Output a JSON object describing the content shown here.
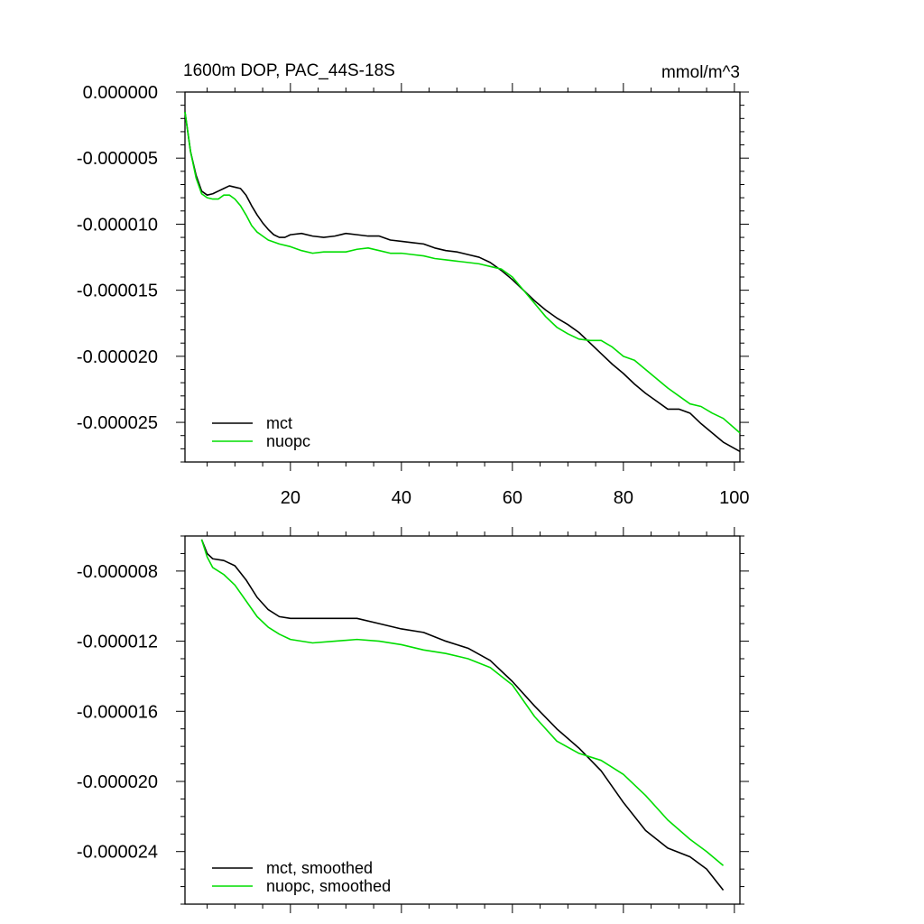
{
  "colors": {
    "mct": "#000000",
    "nuopc": "#00dd00"
  },
  "chart_data": [
    {
      "type": "line",
      "title": "1600m DOP, PAC_44S-18S",
      "units": "mmol/m^3",
      "xlim": [
        1,
        101
      ],
      "ylim": [
        -2.8e-05,
        0.0
      ],
      "x_major_ticks": [
        20,
        40,
        60,
        80,
        100
      ],
      "x_tick_labels": [
        "20",
        "40",
        "60",
        "80",
        "100"
      ],
      "y_major_ticks": [
        0.0,
        -5e-06,
        -1e-05,
        -1.5e-05,
        -2e-05,
        -2.5e-05
      ],
      "y_tick_labels": [
        "0.000000",
        "-0.000005",
        "-0.000010",
        "-0.000015",
        "-0.000020",
        "-0.000025"
      ],
      "legend_position": "bottom-left",
      "series": [
        {
          "name": "mct",
          "color": "#000000",
          "points": [
            [
              1,
              -1.5e-06
            ],
            [
              2,
              -4.5e-06
            ],
            [
              3,
              -6.3e-06
            ],
            [
              4,
              -7.5e-06
            ],
            [
              5,
              -7.8e-06
            ],
            [
              6,
              -7.7e-06
            ],
            [
              7,
              -7.5e-06
            ],
            [
              8,
              -7.3e-06
            ],
            [
              9,
              -7.1e-06
            ],
            [
              10,
              -7.2e-06
            ],
            [
              11,
              -7.3e-06
            ],
            [
              12,
              -7.8e-06
            ],
            [
              13,
              -8.6e-06
            ],
            [
              14,
              -9.3e-06
            ],
            [
              15,
              -9.9e-06
            ],
            [
              16,
              -1.04e-05
            ],
            [
              17,
              -1.08e-05
            ],
            [
              18,
              -1.1e-05
            ],
            [
              19,
              -1.1e-05
            ],
            [
              20,
              -1.08e-05
            ],
            [
              22,
              -1.07e-05
            ],
            [
              24,
              -1.09e-05
            ],
            [
              26,
              -1.1e-05
            ],
            [
              28,
              -1.09e-05
            ],
            [
              30,
              -1.07e-05
            ],
            [
              32,
              -1.08e-05
            ],
            [
              34,
              -1.09e-05
            ],
            [
              36,
              -1.09e-05
            ],
            [
              38,
              -1.12e-05
            ],
            [
              40,
              -1.13e-05
            ],
            [
              42,
              -1.14e-05
            ],
            [
              44,
              -1.15e-05
            ],
            [
              46,
              -1.18e-05
            ],
            [
              48,
              -1.2e-05
            ],
            [
              50,
              -1.21e-05
            ],
            [
              52,
              -1.23e-05
            ],
            [
              54,
              -1.25e-05
            ],
            [
              56,
              -1.29e-05
            ],
            [
              58,
              -1.35e-05
            ],
            [
              60,
              -1.42e-05
            ],
            [
              62,
              -1.5e-05
            ],
            [
              64,
              -1.58e-05
            ],
            [
              66,
              -1.65e-05
            ],
            [
              68,
              -1.71e-05
            ],
            [
              70,
              -1.76e-05
            ],
            [
              72,
              -1.82e-05
            ],
            [
              74,
              -1.9e-05
            ],
            [
              76,
              -1.98e-05
            ],
            [
              78,
              -2.06e-05
            ],
            [
              80,
              -2.13e-05
            ],
            [
              82,
              -2.21e-05
            ],
            [
              84,
              -2.28e-05
            ],
            [
              86,
              -2.34e-05
            ],
            [
              88,
              -2.4e-05
            ],
            [
              90,
              -2.4e-05
            ],
            [
              92,
              -2.43e-05
            ],
            [
              94,
              -2.51e-05
            ],
            [
              96,
              -2.58e-05
            ],
            [
              98,
              -2.65e-05
            ],
            [
              101,
              -2.72e-05
            ]
          ]
        },
        {
          "name": "nuopc",
          "color": "#00dd00",
          "points": [
            [
              1,
              -1.5e-06
            ],
            [
              2,
              -4.5e-06
            ],
            [
              3,
              -6.5e-06
            ],
            [
              4,
              -7.7e-06
            ],
            [
              5,
              -8e-06
            ],
            [
              6,
              -8.1e-06
            ],
            [
              7,
              -8.1e-06
            ],
            [
              8,
              -7.8e-06
            ],
            [
              9,
              -7.8e-06
            ],
            [
              10,
              -8.1e-06
            ],
            [
              11,
              -8.6e-06
            ],
            [
              12,
              -9.3e-06
            ],
            [
              13,
              -1.01e-05
            ],
            [
              14,
              -1.06e-05
            ],
            [
              15,
              -1.09e-05
            ],
            [
              16,
              -1.12e-05
            ],
            [
              18,
              -1.15e-05
            ],
            [
              20,
              -1.17e-05
            ],
            [
              22,
              -1.2e-05
            ],
            [
              24,
              -1.22e-05
            ],
            [
              26,
              -1.21e-05
            ],
            [
              28,
              -1.21e-05
            ],
            [
              30,
              -1.21e-05
            ],
            [
              32,
              -1.19e-05
            ],
            [
              34,
              -1.18e-05
            ],
            [
              36,
              -1.2e-05
            ],
            [
              38,
              -1.22e-05
            ],
            [
              40,
              -1.22e-05
            ],
            [
              42,
              -1.23e-05
            ],
            [
              44,
              -1.24e-05
            ],
            [
              46,
              -1.26e-05
            ],
            [
              48,
              -1.27e-05
            ],
            [
              50,
              -1.28e-05
            ],
            [
              52,
              -1.29e-05
            ],
            [
              54,
              -1.3e-05
            ],
            [
              56,
              -1.32e-05
            ],
            [
              58,
              -1.34e-05
            ],
            [
              60,
              -1.4e-05
            ],
            [
              62,
              -1.5e-05
            ],
            [
              64,
              -1.6e-05
            ],
            [
              66,
              -1.7e-05
            ],
            [
              68,
              -1.78e-05
            ],
            [
              70,
              -1.83e-05
            ],
            [
              72,
              -1.87e-05
            ],
            [
              74,
              -1.88e-05
            ],
            [
              76,
              -1.88e-05
            ],
            [
              78,
              -1.93e-05
            ],
            [
              80,
              -2e-05
            ],
            [
              82,
              -2.03e-05
            ],
            [
              84,
              -2.1e-05
            ],
            [
              86,
              -2.17e-05
            ],
            [
              88,
              -2.24e-05
            ],
            [
              90,
              -2.3e-05
            ],
            [
              92,
              -2.36e-05
            ],
            [
              94,
              -2.38e-05
            ],
            [
              96,
              -2.43e-05
            ],
            [
              98,
              -2.47e-05
            ],
            [
              101,
              -2.58e-05
            ]
          ]
        }
      ]
    },
    {
      "type": "line",
      "xlim": [
        1,
        101
      ],
      "ylim": [
        -2.7e-05,
        -6e-06
      ],
      "x_major_ticks": [
        20,
        40,
        60,
        80,
        100
      ],
      "y_major_ticks": [
        -8e-06,
        -1.2e-05,
        -1.6e-05,
        -2e-05,
        -2.4e-05
      ],
      "y_tick_labels": [
        "-0.000008",
        "-0.000012",
        "-0.000016",
        "-0.000020",
        "-0.000024"
      ],
      "legend_position": "bottom-left",
      "series": [
        {
          "name": "mct, smoothed",
          "color": "#000000",
          "points": [
            [
              4,
              -6.2e-06
            ],
            [
              5,
              -7e-06
            ],
            [
              6,
              -7.3e-06
            ],
            [
              8,
              -7.4e-06
            ],
            [
              10,
              -7.7e-06
            ],
            [
              12,
              -8.5e-06
            ],
            [
              14,
              -9.5e-06
            ],
            [
              16,
              -1.02e-05
            ],
            [
              18,
              -1.06e-05
            ],
            [
              20,
              -1.07e-05
            ],
            [
              24,
              -1.07e-05
            ],
            [
              28,
              -1.07e-05
            ],
            [
              32,
              -1.07e-05
            ],
            [
              36,
              -1.1e-05
            ],
            [
              40,
              -1.13e-05
            ],
            [
              44,
              -1.15e-05
            ],
            [
              48,
              -1.2e-05
            ],
            [
              52,
              -1.24e-05
            ],
            [
              56,
              -1.31e-05
            ],
            [
              60,
              -1.43e-05
            ],
            [
              64,
              -1.57e-05
            ],
            [
              68,
              -1.7e-05
            ],
            [
              72,
              -1.81e-05
            ],
            [
              76,
              -1.94e-05
            ],
            [
              80,
              -2.12e-05
            ],
            [
              84,
              -2.28e-05
            ],
            [
              88,
              -2.38e-05
            ],
            [
              92,
              -2.43e-05
            ],
            [
              95,
              -2.5e-05
            ],
            [
              98,
              -2.62e-05
            ]
          ]
        },
        {
          "name": "nuopc, smoothed",
          "color": "#00dd00",
          "points": [
            [
              4,
              -6.2e-06
            ],
            [
              5,
              -7.2e-06
            ],
            [
              6,
              -7.8e-06
            ],
            [
              8,
              -8.2e-06
            ],
            [
              10,
              -8.8e-06
            ],
            [
              12,
              -9.7e-06
            ],
            [
              14,
              -1.06e-05
            ],
            [
              16,
              -1.12e-05
            ],
            [
              18,
              -1.16e-05
            ],
            [
              20,
              -1.19e-05
            ],
            [
              24,
              -1.21e-05
            ],
            [
              28,
              -1.2e-05
            ],
            [
              32,
              -1.19e-05
            ],
            [
              36,
              -1.2e-05
            ],
            [
              40,
              -1.22e-05
            ],
            [
              44,
              -1.25e-05
            ],
            [
              48,
              -1.27e-05
            ],
            [
              52,
              -1.3e-05
            ],
            [
              56,
              -1.35e-05
            ],
            [
              60,
              -1.45e-05
            ],
            [
              64,
              -1.63e-05
            ],
            [
              68,
              -1.77e-05
            ],
            [
              72,
              -1.84e-05
            ],
            [
              76,
              -1.88e-05
            ],
            [
              80,
              -1.96e-05
            ],
            [
              84,
              -2.08e-05
            ],
            [
              88,
              -2.22e-05
            ],
            [
              92,
              -2.33e-05
            ],
            [
              95,
              -2.4e-05
            ],
            [
              98,
              -2.48e-05
            ]
          ]
        }
      ]
    }
  ]
}
